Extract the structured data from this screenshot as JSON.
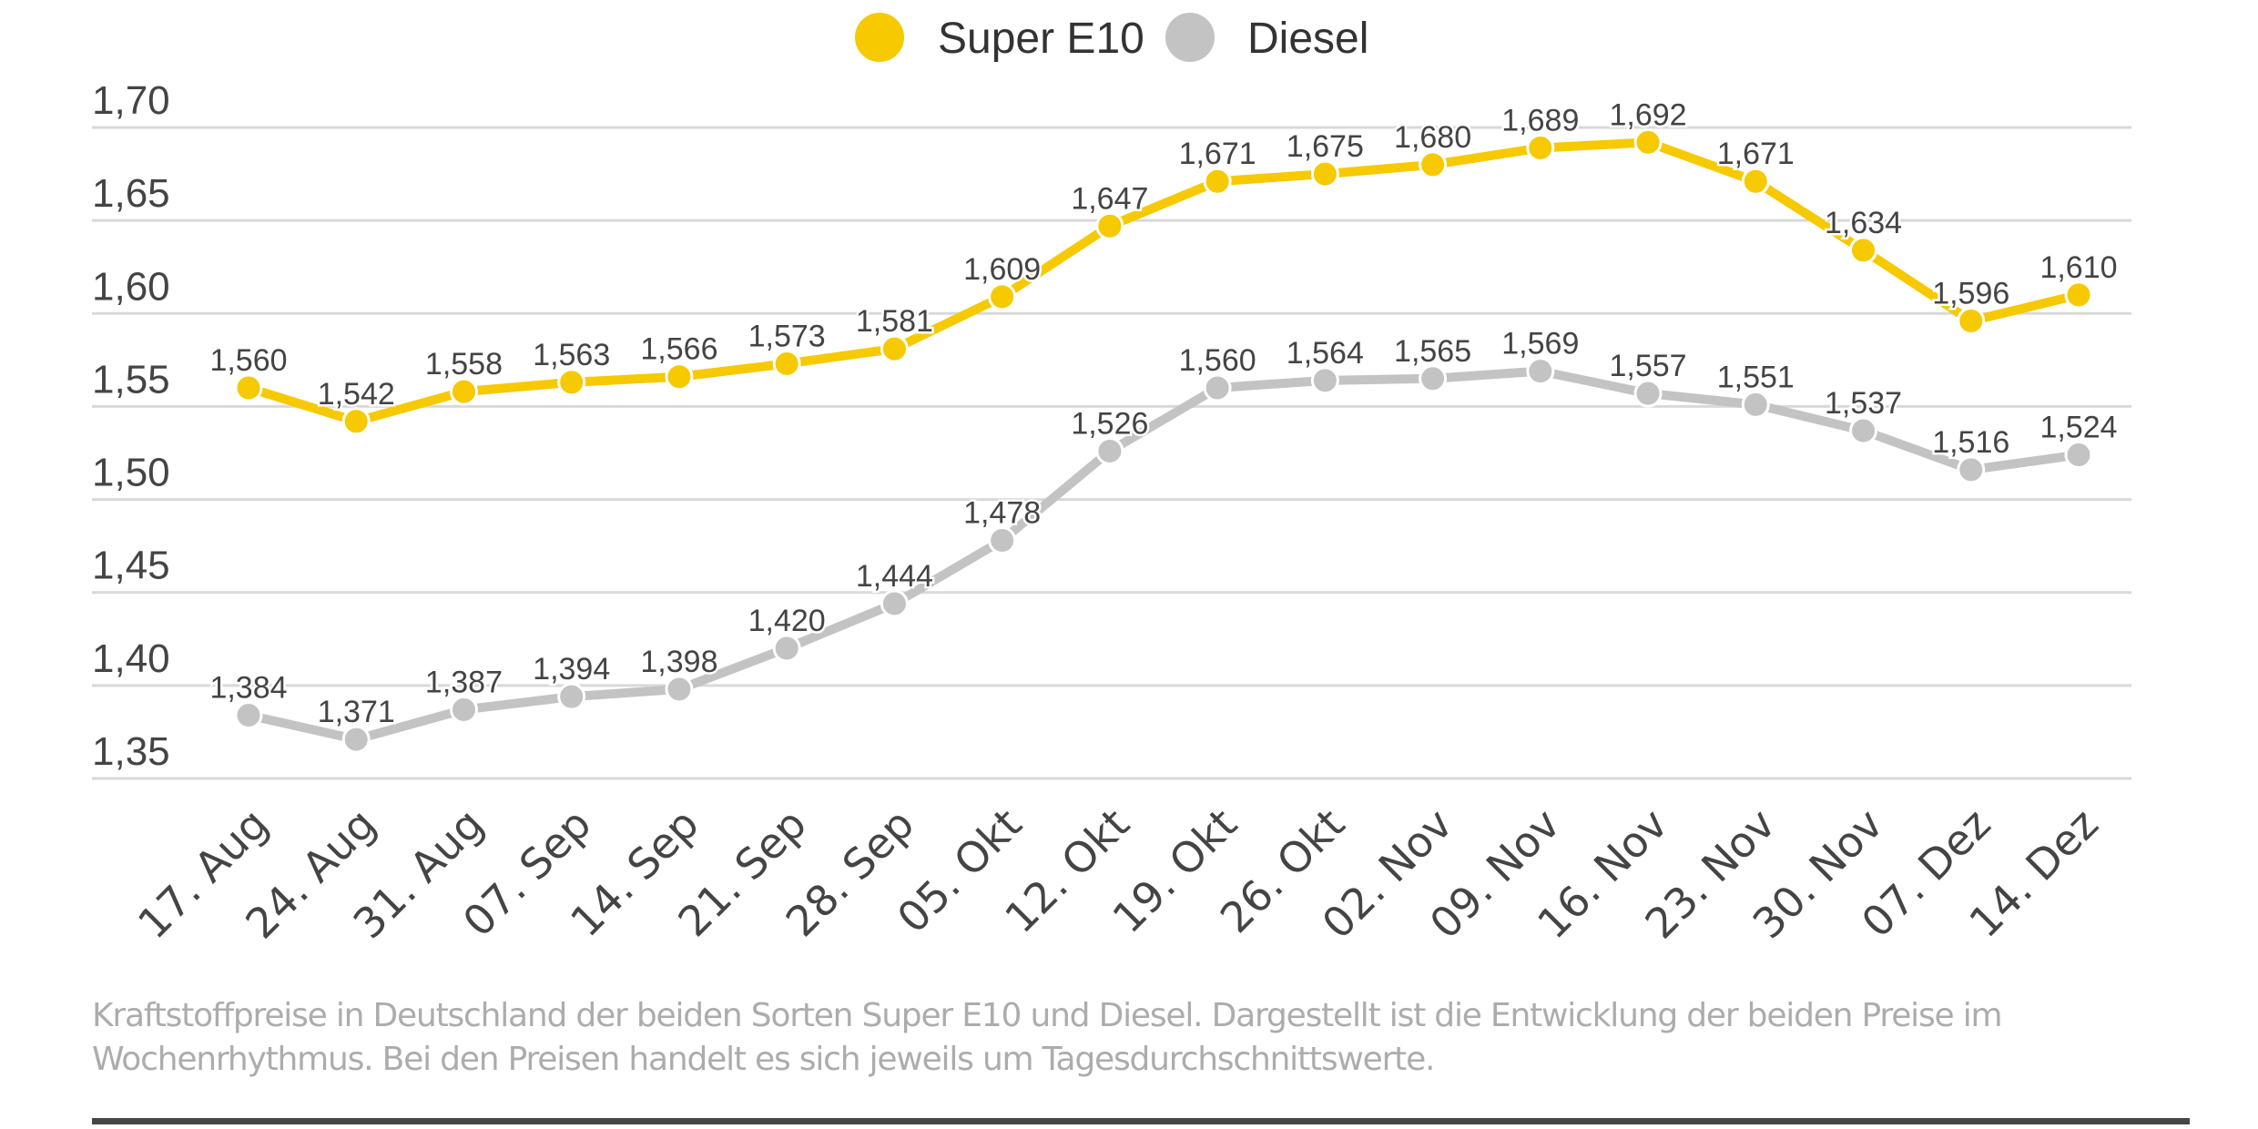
{
  "chart_data": {
    "type": "line",
    "title": "",
    "xlabel": "",
    "ylabel": "",
    "categories": [
      "17. Aug",
      "24. Aug",
      "31. Aug",
      "07. Sep",
      "14. Sep",
      "21. Sep",
      "28. Sep",
      "05. Okt",
      "12. Okt",
      "19. Okt",
      "26. Okt",
      "02. Nov",
      "09. Nov",
      "16. Nov",
      "23. Nov",
      "30. Nov",
      "07. Dez",
      "14. Dez"
    ],
    "series": [
      {
        "name": "Super E10",
        "color": "#f6c900",
        "values": [
          1.56,
          1.542,
          1.558,
          1.563,
          1.566,
          1.573,
          1.581,
          1.609,
          1.647,
          1.671,
          1.675,
          1.68,
          1.689,
          1.692,
          1.671,
          1.634,
          1.596,
          1.61
        ],
        "labels": [
          "1,560",
          "1,542",
          "1,558",
          "1,563",
          "1,566",
          "1,573",
          "1,581",
          "1,609",
          "1,647",
          "1,671",
          "1,675",
          "1,680",
          "1,689",
          "1,692",
          "1,671",
          "1,634",
          "1,596",
          "1,610"
        ]
      },
      {
        "name": "Diesel",
        "color": "#c3c3c3",
        "values": [
          1.384,
          1.371,
          1.387,
          1.394,
          1.398,
          1.42,
          1.444,
          1.478,
          1.526,
          1.56,
          1.564,
          1.565,
          1.569,
          1.557,
          1.551,
          1.537,
          1.516,
          1.524
        ],
        "labels": [
          "1,384",
          "1,371",
          "1,387",
          "1,394",
          "1,398",
          "1,420",
          "1,444",
          "1,478",
          "1,526",
          "1,560",
          "1,564",
          "1,565",
          "1,569",
          "1,557",
          "1,551",
          "1,537",
          "1,516",
          "1,524"
        ]
      }
    ],
    "ylim": [
      1.35,
      1.7
    ],
    "yticks": [
      1.7,
      1.65,
      1.6,
      1.55,
      1.5,
      1.45,
      1.4,
      1.35
    ],
    "ytick_labels": [
      "1,70",
      "1,65",
      "1,60",
      "1,55",
      "1,50",
      "1,45",
      "1,40",
      "1,35"
    ],
    "grid": true,
    "legend_placement": "top-center"
  },
  "caption": "Kraftstoffpreise in Deutschland der beiden Sorten Super E10 und Diesel. Dargestellt ist die Entwicklung der beiden Preise im Wochenrhythmus. Bei den Preisen handelt es sich jeweils um Tagesdurchschnittswerte.",
  "colors": {
    "text": "#444444",
    "grid": "#d9d9d9",
    "caption": "#acacac",
    "rule": "#464646"
  }
}
